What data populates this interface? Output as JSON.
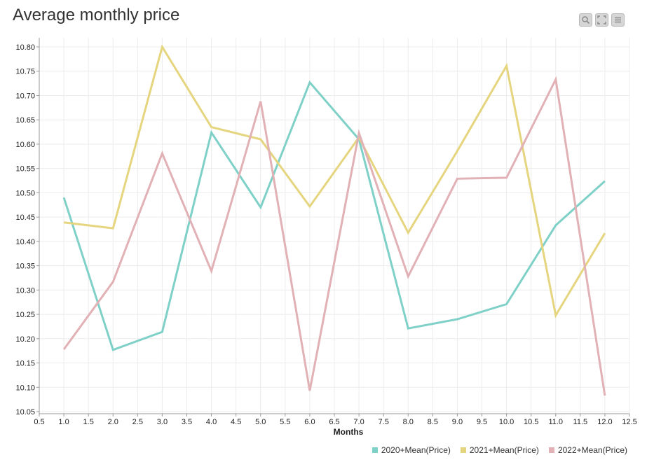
{
  "toolbar": {
    "icons": [
      "zoom-icon",
      "fullscreen-icon",
      "menu-icon"
    ]
  },
  "chart_data": {
    "type": "line",
    "title": "Average monthly price",
    "xlabel": "Months",
    "ylabel": "",
    "xlim": [
      0.5,
      12.5
    ],
    "ylim": [
      10.05,
      10.8
    ],
    "x_ticks": [
      "0.5",
      "1.0",
      "1.5",
      "2.0",
      "2.5",
      "3.0",
      "3.5",
      "4.0",
      "4.5",
      "5.0",
      "5.5",
      "6.0",
      "6.5",
      "7.0",
      "7.5",
      "8.0",
      "8.5",
      "9.0",
      "9.5",
      "10.0",
      "10.5",
      "11.0",
      "11.5",
      "12.0",
      "12.5"
    ],
    "y_ticks": [
      "10.05",
      "10.10",
      "10.15",
      "10.20",
      "10.25",
      "10.30",
      "10.35",
      "10.40",
      "10.45",
      "10.50",
      "10.55",
      "10.60",
      "10.65",
      "10.70",
      "10.75",
      "10.80"
    ],
    "grid": true,
    "legend_position": "bottom-right",
    "x": [
      1,
      2,
      3,
      4,
      5,
      6,
      7,
      8,
      9,
      10,
      11,
      12
    ],
    "series": [
      {
        "name": "2020+Mean(Price)",
        "color": "#7fd1c8",
        "values": [
          10.49,
          10.177,
          10.214,
          10.624,
          10.47,
          10.727,
          10.61,
          10.221,
          10.24,
          10.271,
          10.433,
          10.524
        ]
      },
      {
        "name": "2021+Mean(Price)",
        "color": "#e5d57f",
        "values": [
          10.439,
          10.427,
          10.8,
          10.635,
          10.61,
          10.472,
          10.614,
          10.418,
          10.586,
          10.761,
          10.248,
          10.417
        ]
      },
      {
        "name": "2022+Mean(Price)",
        "color": "#e1b1b5",
        "values": [
          10.178,
          10.317,
          10.581,
          10.339,
          10.688,
          10.093,
          10.623,
          10.328,
          10.529,
          10.531,
          10.733,
          10.083
        ]
      }
    ]
  }
}
